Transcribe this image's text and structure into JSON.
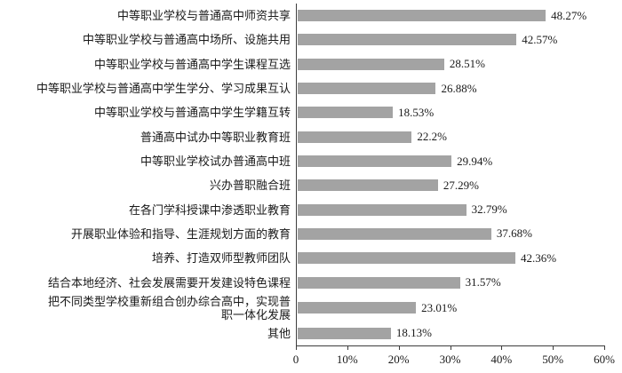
{
  "chart_data": {
    "type": "bar",
    "orientation": "horizontal",
    "title": "",
    "categories": [
      "中等职业学校与普通高中师资共享",
      "中等职业学校与普通高中场所、设施共用",
      "中等职业学校与普通高中学生课程互选",
      "中等职业学校与普通高中学生学分、学习成果互认",
      "中等职业学校与普通高中学生学籍互转",
      "普通高中试办中等职业教育班",
      "中等职业学校试办普通高中班",
      "兴办普职融合班",
      "在各门学科授课中渗透职业教育",
      "开展职业体验和指导、生涯规划方面的教育",
      "培养、打造双师型教师团队",
      "结合本地经济、社会发展需要开发建设特色课程",
      "把不同类型学校重新组合创办综合高中，实现普\n职一体化发展",
      "其他"
    ],
    "values": [
      48.27,
      42.57,
      28.51,
      26.88,
      18.53,
      22.2,
      29.94,
      27.29,
      32.79,
      37.68,
      42.36,
      31.57,
      23.01,
      18.13
    ],
    "value_labels": [
      "48.27%",
      "42.57%",
      "28.51%",
      "26.88%",
      "18.53%",
      "22.2%",
      "29.94%",
      "27.29%",
      "32.79%",
      "37.68%",
      "42.36%",
      "31.57%",
      "23.01%",
      "18.13%"
    ],
    "xlim": [
      0,
      60
    ],
    "x_tick_values": [
      0,
      10,
      20,
      30,
      40,
      50,
      60
    ],
    "x_tick_labels": [
      "0",
      "10%",
      "20%",
      "30%",
      "40%",
      "50%",
      "60%"
    ],
    "grid": false,
    "legend": null,
    "bar_color": "#a3a3a3",
    "axis_color": "#3d3d3d",
    "text_color": "#1a1a1a",
    "background": "#ffffff"
  }
}
